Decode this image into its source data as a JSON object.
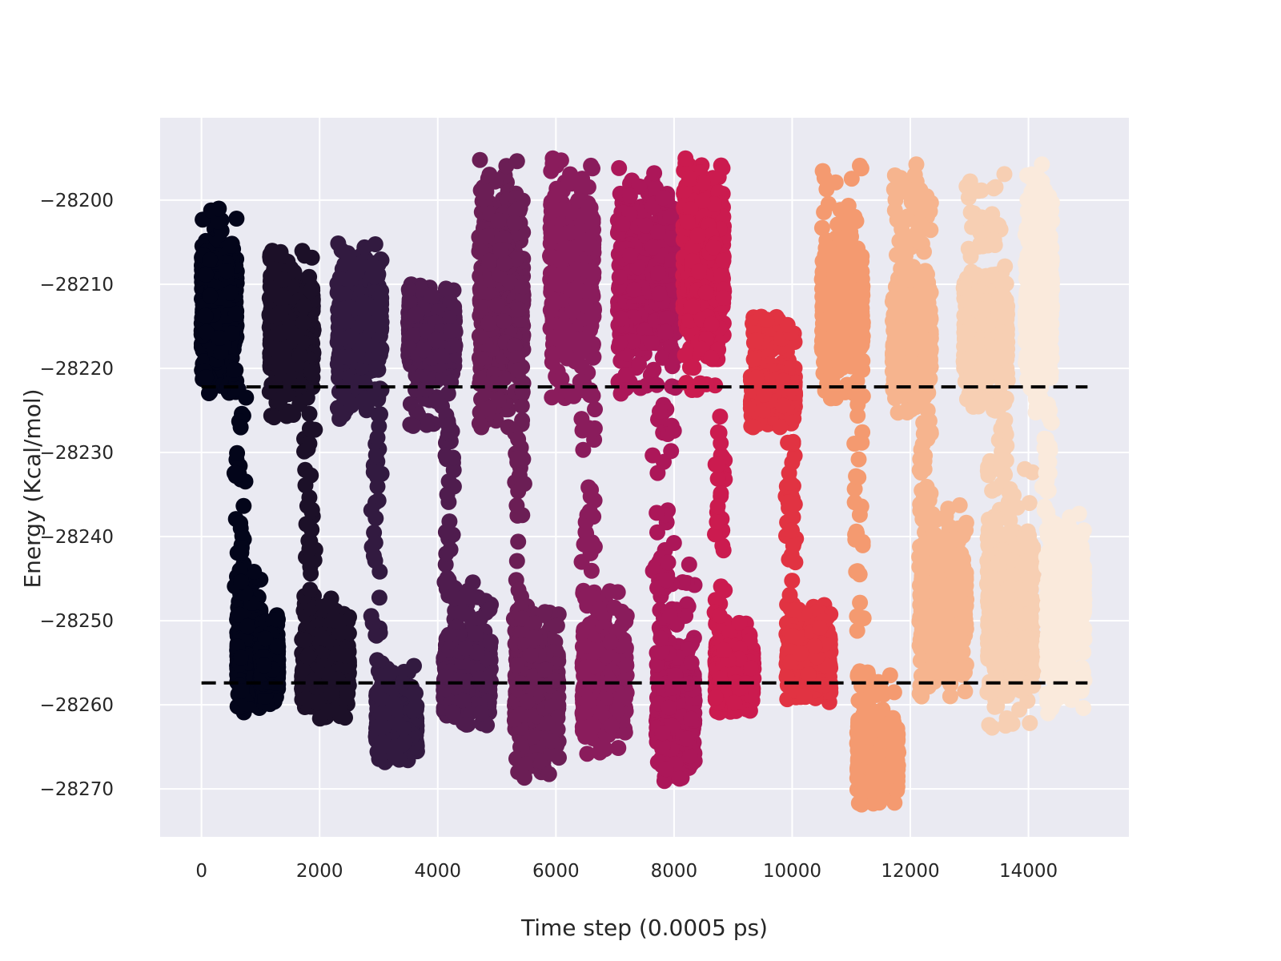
{
  "chart_data": {
    "type": "scatter",
    "title": "",
    "xlabel": "Time step (0.0005 ps)",
    "ylabel": "Energy (Kcal/mol)",
    "xlim": [
      -700,
      15700
    ],
    "ylim": [
      -28275.7,
      -28190.2
    ],
    "xticks": [
      0,
      2000,
      4000,
      6000,
      8000,
      10000,
      12000,
      14000
    ],
    "yticks": [
      -28270,
      -28260,
      -28250,
      -28240,
      -28230,
      -28220,
      -28210,
      -28200
    ],
    "grid": true,
    "background": "#eaeaf2",
    "grid_color": "#ffffff",
    "reference_lines": [
      {
        "y": -28222.2,
        "x": [
          0,
          15000
        ],
        "style": "dashed",
        "color": "#000000"
      },
      {
        "y": -28257.4,
        "x": [
          0,
          15000
        ],
        "style": "dashed",
        "color": "#000000"
      }
    ],
    "marker_size_px": 10,
    "segments": [
      {
        "x_range": [
          0,
          750
        ],
        "color": "#03051a",
        "clusters": [
          {
            "x": [
              0,
              600
            ],
            "y_mean": -28213,
            "y_min": -28223,
            "y_max": -28200.5
          },
          {
            "x": [
              600,
              1000
            ],
            "y_mean": -28254,
            "y_min": -28261,
            "y_max": -28244
          },
          {
            "x": [
              1000,
              1300
            ],
            "y_mean": -28255,
            "y_min": -28260,
            "y_max": -28249
          }
        ],
        "transition": {
          "x": [
            550,
            750
          ],
          "y": [
            -28222,
            -28247
          ]
        }
      },
      {
        "x_range": [
          1150,
          2000
        ],
        "color": "#1c1028",
        "clusters": [
          {
            "x": [
              1150,
              1900
            ],
            "y_mean": -28216,
            "y_min": -28226,
            "y_max": -28206
          },
          {
            "x": [
              1700,
              2500
            ],
            "y_mean": -28255,
            "y_min": -28262,
            "y_max": -28247
          }
        ],
        "transition": {
          "x": [
            1750,
            1900
          ],
          "y": [
            -28227,
            -28248
          ]
        }
      },
      {
        "x_range": [
          2300,
          3100
        ],
        "color": "#321a40",
        "clusters": [
          {
            "x": [
              2300,
              3050
            ],
            "y_mean": -28215,
            "y_min": -28226,
            "y_max": -28205
          },
          {
            "x": [
              2950,
              3650
            ],
            "y_mean": -28262,
            "y_min": -28267,
            "y_max": -28255
          }
        ],
        "transition": {
          "x": [
            2900,
            3050
          ],
          "y": [
            -28224,
            -28256
          ]
        }
      },
      {
        "x_range": [
          3500,
          4400
        ],
        "color": "#4f1c4e",
        "clusters": [
          {
            "x": [
              3500,
              4300
            ],
            "y_mean": -28216,
            "y_min": -28227,
            "y_max": -28210
          },
          {
            "x": [
              4100,
              4900
            ],
            "y_mean": -28256,
            "y_min": -28263,
            "y_max": -28245
          }
        ],
        "transition": {
          "x": [
            4100,
            4250
          ],
          "y": [
            -28223,
            -28247
          ]
        }
      },
      {
        "x_range": [
          4700,
          5600
        ],
        "color": "#6b1e55",
        "clusters": [
          {
            "x": [
              4700,
              5450
            ],
            "y_mean": -28212,
            "y_min": -28227,
            "y_max": -28195
          },
          {
            "x": [
              5300,
              6050
            ],
            "y_mean": -28258,
            "y_min": -28269,
            "y_max": -28247
          }
        ],
        "transition": {
          "x": [
            5300,
            5450
          ],
          "y": [
            -28220,
            -28252
          ]
        }
      },
      {
        "x_range": [
          5900,
          6800
        ],
        "color": "#8a1c5c",
        "clusters": [
          {
            "x": [
              5900,
              6650
            ],
            "y_mean": -28210,
            "y_min": -28224,
            "y_max": -28195
          },
          {
            "x": [
              6450,
              7200
            ],
            "y_mean": -28257,
            "y_min": -28266,
            "y_max": -28246
          }
        ],
        "transition": {
          "x": [
            6450,
            6650
          ],
          "y": [
            -28222,
            -28248
          ]
        }
      },
      {
        "x_range": [
          7050,
          8000
        ],
        "color": "#ac1759",
        "clusters": [
          {
            "x": [
              7050,
              8050
            ],
            "y_mean": -28209,
            "y_min": -28223,
            "y_max": -28196
          },
          {
            "x": [
              7700,
              8350
            ],
            "y_mean": -28260,
            "y_min": -28270,
            "y_max": -28243
          }
        ],
        "transition": {
          "x": [
            7650,
            8000
          ],
          "y": [
            -28222,
            -28250
          ]
        }
      },
      {
        "x_range": [
          8150,
          9100
        ],
        "color": "#cb1b4f",
        "clusters": [
          {
            "x": [
              8150,
              8850
            ],
            "y_mean": -28208,
            "y_min": -28223,
            "y_max": -28195
          },
          {
            "x": [
              8700,
              9350
            ],
            "y_mean": -28256,
            "y_min": -28261,
            "y_max": -28250
          }
        ],
        "transition": {
          "x": [
            8700,
            8850
          ],
          "y": [
            -28225,
            -28250
          ]
        }
      },
      {
        "x_range": [
          9300,
          10100
        ],
        "color": "#e13342",
        "clusters": [
          {
            "x": [
              9300,
              10050
            ],
            "y_mean": -28223,
            "y_min": -28227,
            "y_max": -28213
          },
          {
            "x": [
              9900,
              10650
            ],
            "y_mean": -28254,
            "y_min": -28260,
            "y_max": -28248
          }
        ],
        "transition": {
          "x": [
            9900,
            10050
          ],
          "y": [
            -28228,
            -28249
          ]
        }
      },
      {
        "x_range": [
          10500,
          11600
        ],
        "color": "#f49a70",
        "clusters": [
          {
            "x": [
              10500,
              11200
            ],
            "y_mean": -28214,
            "y_min": -28224,
            "y_max": -28195
          },
          {
            "x": [
              11100,
              11800
            ],
            "y_mean": -28266,
            "y_min": -28272,
            "y_max": -28256
          }
        ],
        "transition": {
          "x": [
            11050,
            11200
          ],
          "y": [
            -28222,
            -28252
          ]
        }
      },
      {
        "x_range": [
          11700,
          12900
        ],
        "color": "#f6b48e",
        "clusters": [
          {
            "x": [
              11700,
              12350
            ],
            "y_mean": -28216,
            "y_min": -28226,
            "y_max": -28195
          },
          {
            "x": [
              12150,
              12950
            ],
            "y_mean": -28248,
            "y_min": -28259,
            "y_max": -28236
          }
        ],
        "transition": {
          "x": [
            12150,
            12350
          ],
          "y": [
            -28226,
            -28238
          ]
        }
      },
      {
        "x_range": [
          12900,
          14200
        ],
        "color": "#f7cfb3",
        "clusters": [
          {
            "x": [
              12900,
              13650
            ],
            "y_mean": -28216,
            "y_min": -28225,
            "y_max": -28196
          },
          {
            "x": [
              13300,
              14100
            ],
            "y_mean": -28249,
            "y_min": -28263,
            "y_max": -28231
          }
        ],
        "transition": {
          "x": [
            13400,
            13650
          ],
          "y": [
            -28222,
            -28235
          ]
        }
      },
      {
        "x_range": [
          13950,
          14950
        ],
        "color": "#faeadc",
        "clusters": [
          {
            "x": [
              13950,
              14400
            ],
            "y_mean": -28210,
            "y_min": -28226,
            "y_max": -28195
          },
          {
            "x": [
              14300,
              14950
            ],
            "y_mean": -28248,
            "y_min": -28261,
            "y_max": -28237
          }
        ],
        "transition": {
          "x": [
            14250,
            14400
          ],
          "y": [
            -28224,
            -28240
          ]
        }
      }
    ]
  }
}
